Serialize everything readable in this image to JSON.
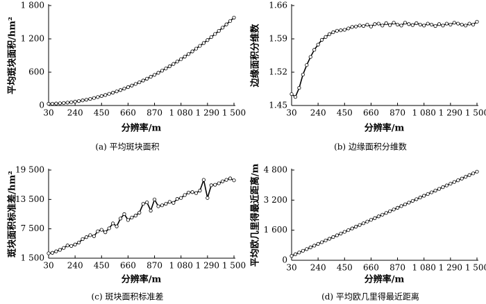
{
  "chart_data": [
    {
      "type": "line",
      "caption": "(a) 平均斑块面积",
      "xlabel": "分辨率/m",
      "ylabel": "平均斑块面积/hm²",
      "x": [
        30,
        60,
        90,
        120,
        150,
        180,
        210,
        240,
        270,
        300,
        330,
        360,
        390,
        420,
        450,
        480,
        510,
        540,
        570,
        600,
        630,
        660,
        690,
        720,
        750,
        780,
        810,
        840,
        870,
        900,
        930,
        960,
        990,
        1020,
        1050,
        1080,
        1110,
        1140,
        1170,
        1200,
        1230,
        1260,
        1290,
        1320,
        1350,
        1380,
        1410,
        1440,
        1470,
        1500
      ],
      "values": [
        31,
        32,
        36,
        40,
        46,
        52,
        60,
        70,
        80,
        92,
        105,
        119,
        135,
        152,
        170,
        189,
        210,
        231,
        254,
        278,
        304,
        331,
        359,
        388,
        418,
        450,
        483,
        517,
        552,
        589,
        627,
        666,
        706,
        748,
        791,
        835,
        880,
        927,
        975,
        1024,
        1074,
        1125,
        1178,
        1232,
        1288,
        1344,
        1402,
        1461,
        1521,
        1583
      ],
      "color": "#000000",
      "xlim": [
        30,
        1500
      ],
      "xticks": [
        30,
        240,
        450,
        660,
        870,
        {
          "value": 1080,
          "label": "1 080"
        },
        {
          "value": 1290,
          "label": "1 290"
        },
        {
          "value": 1500,
          "label": "1 500"
        }
      ],
      "ylim": [
        0,
        1800
      ],
      "yticks": [
        0,
        600,
        {
          "value": 1200,
          "label": "1 200"
        },
        {
          "value": 1800,
          "label": "1 800"
        }
      ]
    },
    {
      "type": "line",
      "caption": "(b) 边缘面积分维数",
      "xlabel": "分辨率/m",
      "ylabel": "边缘面积分维数",
      "x": [
        30,
        60,
        90,
        120,
        150,
        180,
        210,
        240,
        270,
        300,
        330,
        360,
        390,
        420,
        450,
        480,
        510,
        540,
        570,
        600,
        630,
        660,
        690,
        720,
        750,
        780,
        810,
        840,
        870,
        900,
        930,
        960,
        990,
        1020,
        1050,
        1080,
        1110,
        1140,
        1170,
        1200,
        1230,
        1260,
        1290,
        1320,
        1350,
        1380,
        1410,
        1440,
        1470,
        1500
      ],
      "values": [
        1.474,
        1.468,
        1.487,
        1.515,
        1.535,
        1.552,
        1.567,
        1.578,
        1.588,
        1.594,
        1.6,
        1.604,
        1.607,
        1.608,
        1.609,
        1.612,
        1.615,
        1.616,
        1.618,
        1.617,
        1.62,
        1.616,
        1.621,
        1.622,
        1.618,
        1.623,
        1.619,
        1.624,
        1.62,
        1.618,
        1.624,
        1.621,
        1.619,
        1.623,
        1.62,
        1.618,
        1.622,
        1.62,
        1.617,
        1.621,
        1.618,
        1.622,
        1.62,
        1.624,
        1.622,
        1.62,
        1.618,
        1.622,
        1.62,
        1.626
      ],
      "color": "#000000",
      "xlim": [
        30,
        1500
      ],
      "xticks": [
        30,
        240,
        450,
        660,
        870,
        {
          "value": 1080,
          "label": "1 080"
        },
        {
          "value": 1290,
          "label": "1 290"
        },
        {
          "value": 1500,
          "label": "1 500"
        }
      ],
      "ylim": [
        1.45,
        1.66
      ],
      "yticks": [
        1.45,
        1.52,
        1.59,
        1.66
      ]
    },
    {
      "type": "line",
      "caption": "(c) 斑块面积标准差",
      "xlabel": "分辨率/m",
      "ylabel": "斑块面积标准差/hm²",
      "x": [
        30,
        60,
        90,
        120,
        150,
        180,
        210,
        240,
        270,
        300,
        330,
        360,
        390,
        420,
        450,
        480,
        510,
        540,
        570,
        600,
        630,
        660,
        690,
        720,
        750,
        780,
        810,
        840,
        870,
        900,
        930,
        960,
        990,
        1020,
        1050,
        1080,
        1110,
        1140,
        1170,
        1200,
        1230,
        1260,
        1290,
        1320,
        1350,
        1380,
        1410,
        1440,
        1470,
        1500
      ],
      "values": [
        2500,
        2600,
        2900,
        3200,
        3600,
        4100,
        4000,
        4300,
        4700,
        5400,
        5800,
        6200,
        6000,
        7000,
        7300,
        6800,
        7600,
        8600,
        8000,
        9600,
        10500,
        9300,
        9800,
        10200,
        10800,
        12600,
        12900,
        11200,
        13500,
        12100,
        12300,
        12600,
        13000,
        12800,
        13600,
        13800,
        14400,
        14900,
        15000,
        14800,
        15300,
        17500,
        13800,
        16400,
        16500,
        16800,
        17200,
        17500,
        17800,
        17400
      ],
      "color": "#000000",
      "xlim": [
        30,
        1500
      ],
      "xticks": [
        30,
        240,
        450,
        660,
        870,
        {
          "value": 1080,
          "label": "1 080"
        },
        {
          "value": 1290,
          "label": "1 290"
        },
        {
          "value": 1500,
          "label": "1 500"
        }
      ],
      "ylim": [
        1500,
        19500
      ],
      "yticks": [
        {
          "value": 1500,
          "label": "1 500"
        },
        {
          "value": 7500,
          "label": "7 500"
        },
        {
          "value": 13500,
          "label": "13 500"
        },
        {
          "value": 19500,
          "label": "19 500"
        }
      ]
    },
    {
      "type": "line",
      "caption": "(d) 平均欧几里得最近距离",
      "xlabel": "分辨率/m",
      "ylabel": "平均欧几里得最近距离/m",
      "x": [
        30,
        60,
        90,
        120,
        150,
        180,
        210,
        240,
        270,
        300,
        330,
        360,
        390,
        420,
        450,
        480,
        510,
        540,
        570,
        600,
        630,
        660,
        690,
        720,
        750,
        780,
        810,
        840,
        870,
        900,
        930,
        960,
        990,
        1020,
        1050,
        1080,
        1110,
        1140,
        1170,
        1200,
        1230,
        1260,
        1290,
        1320,
        1350,
        1380,
        1410,
        1440,
        1470,
        1500
      ],
      "values": [
        230,
        322,
        413,
        505,
        596,
        688,
        779,
        871,
        962,
        1054,
        1145,
        1237,
        1328,
        1420,
        1511,
        1603,
        1694,
        1786,
        1877,
        1969,
        2060,
        2152,
        2243,
        2335,
        2426,
        2518,
        2609,
        2701,
        2792,
        2884,
        2975,
        3067,
        3158,
        3250,
        3341,
        3433,
        3524,
        3616,
        3707,
        3799,
        3890,
        3982,
        4073,
        4165,
        4256,
        4348,
        4439,
        4531,
        4622,
        4714
      ],
      "color": "#000000",
      "xlim": [
        30,
        1500
      ],
      "xticks": [
        30,
        240,
        450,
        660,
        870,
        {
          "value": 1080,
          "label": "1 080"
        },
        {
          "value": 1290,
          "label": "1 290"
        },
        {
          "value": 1500,
          "label": "1 500"
        }
      ],
      "ylim": [
        0,
        4800
      ],
      "yticks": [
        0,
        {
          "value": 1600,
          "label": "1 600"
        },
        {
          "value": 3200,
          "label": "3 200"
        },
        {
          "value": 4800,
          "label": "4 800"
        }
      ]
    }
  ]
}
